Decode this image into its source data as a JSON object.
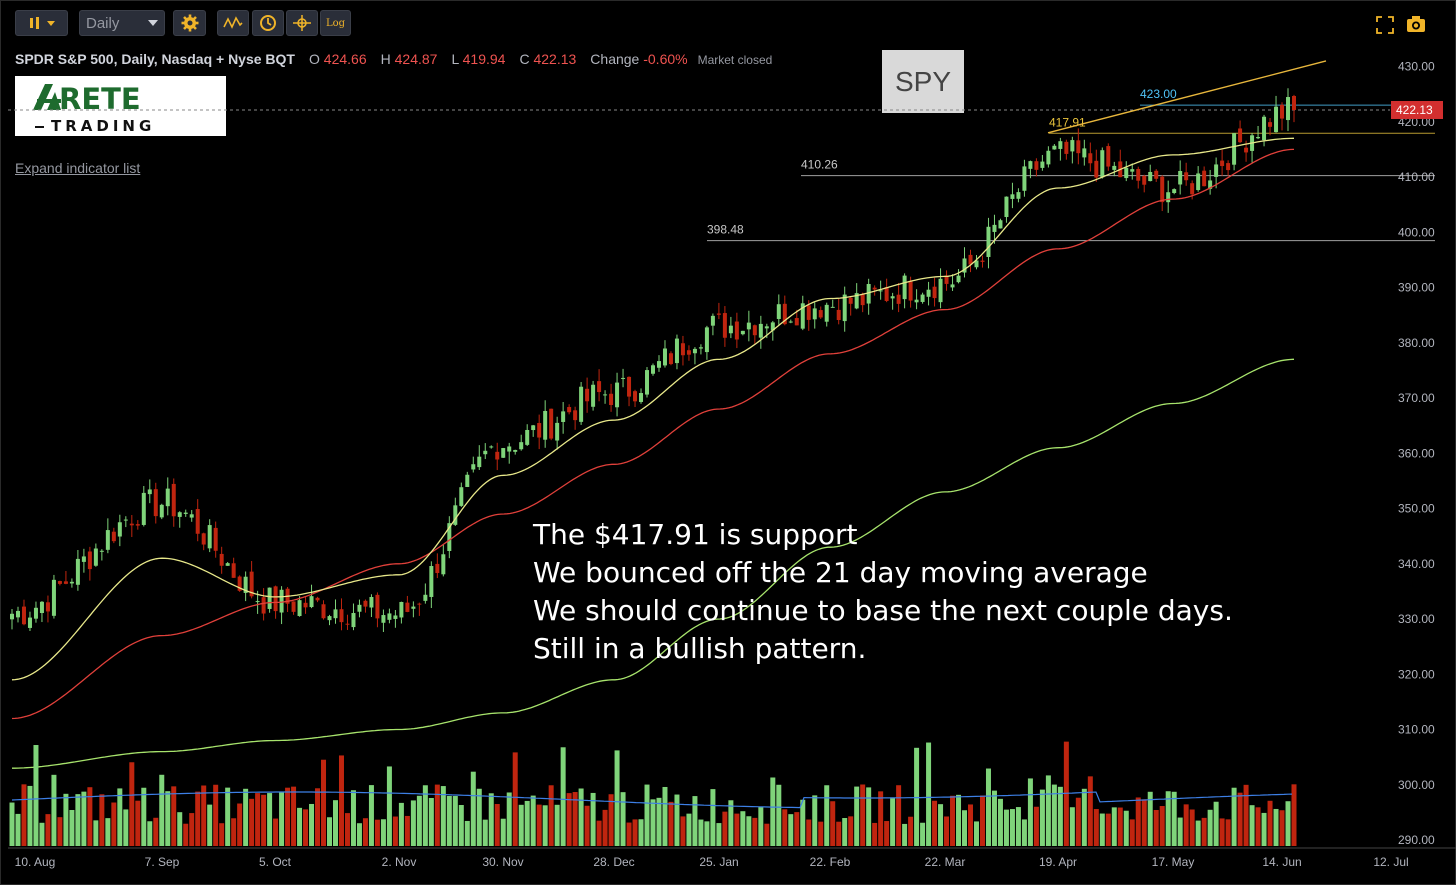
{
  "toolbar": {
    "interval": "Daily",
    "log_label": "Log"
  },
  "header": {
    "symbol_name": "SPDR S&P 500, Daily, Nasdaq + Nyse BQT",
    "open_label": "O",
    "open": "424.66",
    "high_label": "H",
    "high": "424.87",
    "low_label": "L",
    "low": "419.94",
    "close_label": "C",
    "close": "422.13",
    "change_label": "Change",
    "change": "-0.60%",
    "status": "Market closed"
  },
  "logo": {
    "line1": "RETE",
    "line2": "TRADING"
  },
  "expand_indicator": "Expand indicator list",
  "badge": "SPY",
  "annotation": {
    "lines": [
      "The $417.91 is support",
      "We bounced off the 21 day moving average",
      "We should continue to base the next couple days.",
      "Still in a bullish pattern."
    ]
  },
  "colors": {
    "up": "#7fd47a",
    "down": "#c0250f",
    "ema21": "#e8e88a",
    "ema50": "#e0403a",
    "ma200": "#a7e36c",
    "volume_avg": "#3d7fe6",
    "trendline": "#e7b63c",
    "price_tag": "#d32f2f"
  },
  "chart_data": {
    "type": "candlestick",
    "y_axis_ticks": [
      290,
      300,
      310,
      320,
      330,
      340,
      350,
      360,
      370,
      380,
      390,
      400,
      410,
      420,
      430
    ],
    "x_axis_ticks": [
      "10. Aug",
      "7. Sep",
      "5. Oct",
      "2. Nov",
      "30. Nov",
      "28. Dec",
      "25. Jan",
      "22. Feb",
      "22. Mar",
      "19. Apr",
      "17. May",
      "14. Jun",
      "12. Jul"
    ],
    "last_price": "422.13",
    "levels": [
      {
        "label": "423.00",
        "value": 423.0,
        "color": "#4fc3f7"
      },
      {
        "label": "417.91",
        "value": 417.91,
        "color": "#e7c23c"
      },
      {
        "label": "410.26",
        "value": 410.26,
        "color": "#c8c8c8"
      },
      {
        "label": "398.48",
        "value": 398.48,
        "color": "#c8c8c8"
      }
    ],
    "price_anchors": [
      {
        "date": "10. Aug",
        "close": 331
      },
      {
        "date": "7. Sep",
        "close": 351
      },
      {
        "date": "5. Oct",
        "close": 333
      },
      {
        "date": "2. Nov",
        "close": 331
      },
      {
        "date": "30. Nov",
        "close": 362
      },
      {
        "date": "28. Dec",
        "close": 371
      },
      {
        "date": "25. Jan",
        "close": 383
      },
      {
        "date": "22. Feb",
        "close": 387
      },
      {
        "date": "22. Mar",
        "close": 391
      },
      {
        "date": "19. Apr",
        "close": 414
      },
      {
        "date": "17. May",
        "close": 408
      },
      {
        "date": "14. Jun",
        "close": 422.13
      }
    ],
    "ema21_anchors": [
      {
        "date": "10. Aug",
        "value": 319
      },
      {
        "date": "7. Sep",
        "value": 341
      },
      {
        "date": "5. Oct",
        "value": 334
      },
      {
        "date": "2. Nov",
        "value": 338
      },
      {
        "date": "30. Nov",
        "value": 356
      },
      {
        "date": "28. Dec",
        "value": 366
      },
      {
        "date": "25. Jan",
        "value": 377
      },
      {
        "date": "22. Feb",
        "value": 388
      },
      {
        "date": "22. Mar",
        "value": 392
      },
      {
        "date": "19. Apr",
        "value": 408
      },
      {
        "date": "17. May",
        "value": 414
      },
      {
        "date": "14. Jun",
        "value": 417
      }
    ],
    "ema50_anchors": [
      {
        "date": "10. Aug",
        "value": 312
      },
      {
        "date": "7. Sep",
        "value": 327
      },
      {
        "date": "5. Oct",
        "value": 333
      },
      {
        "date": "2. Nov",
        "value": 340
      },
      {
        "date": "30. Nov",
        "value": 349
      },
      {
        "date": "28. Dec",
        "value": 358
      },
      {
        "date": "25. Jan",
        "value": 368
      },
      {
        "date": "22. Feb",
        "value": 378
      },
      {
        "date": "22. Mar",
        "value": 386
      },
      {
        "date": "19. Apr",
        "value": 397
      },
      {
        "date": "17. May",
        "value": 406
      },
      {
        "date": "14. Jun",
        "value": 415
      }
    ],
    "ma200_anchors": [
      {
        "date": "10. Aug",
        "value": 303
      },
      {
        "date": "7. Sep",
        "value": 306
      },
      {
        "date": "5. Oct",
        "value": 308
      },
      {
        "date": "2. Nov",
        "value": 310
      },
      {
        "date": "30. Nov",
        "value": 313
      },
      {
        "date": "28. Dec",
        "value": 319
      },
      {
        "date": "25. Jan",
        "value": 330
      },
      {
        "date": "22. Feb",
        "value": 343
      },
      {
        "date": "22. Mar",
        "value": 353
      },
      {
        "date": "19. Apr",
        "value": 361
      },
      {
        "date": "17. May",
        "value": 369
      },
      {
        "date": "14. Jun",
        "value": 377
      }
    ],
    "trendline": {
      "start": {
        "date": "19. Apr",
        "value": 418
      },
      "end": {
        "date": "12. Jul",
        "value": 431
      }
    },
    "grid": false
  }
}
